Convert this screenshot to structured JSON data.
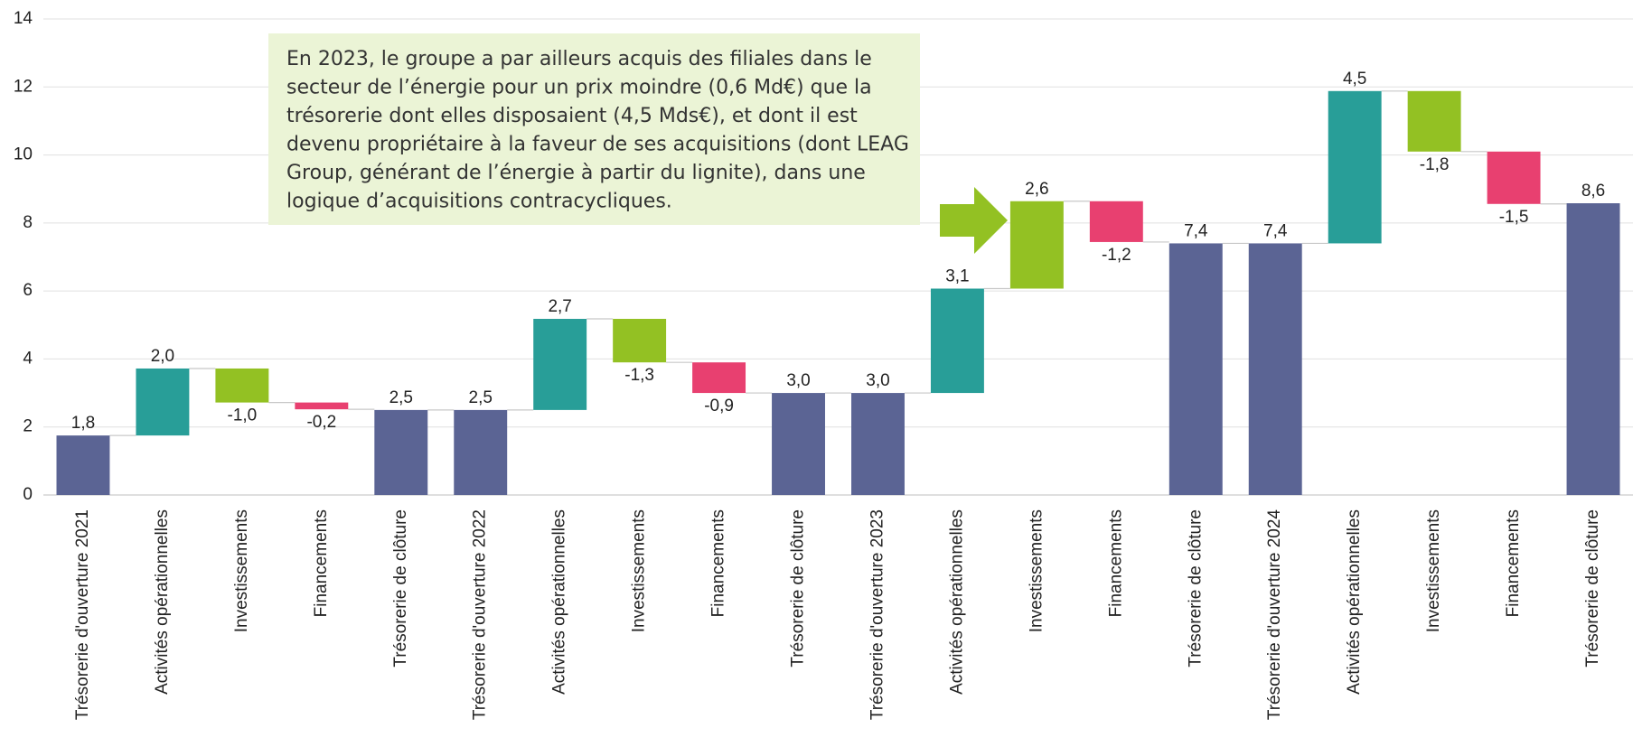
{
  "chart_data": {
    "type": "waterfall",
    "categories": [
      "Trésorerie d'ouverture 2021",
      "Activités opérationnelles",
      "Investissements",
      "Financements",
      "Trésorerie de clôture",
      "Trésorerie d'ouverture 2022",
      "Activités opérationnelles",
      "Investissements",
      "Financements",
      "Trésorerie de clôture",
      "Trésorerie d'ouverture 2023",
      "Activités opérationnelles",
      "Investissements",
      "Financements",
      "Trésorerie de clôture",
      "Trésorerie d'ouverture 2024",
      "Activités opérationnelles",
      "Investissements",
      "Financements",
      "Trésorerie de clôture"
    ],
    "values": [
      1.75,
      1.97,
      -1.0,
      -0.2,
      2.5,
      2.5,
      2.68,
      -1.28,
      -0.9,
      3.0,
      3.0,
      3.07,
      2.57,
      -1.2,
      7.4,
      7.4,
      4.48,
      -1.78,
      -1.54,
      8.58
    ],
    "value_labels": [
      "1,8",
      "2,0",
      "-1,0",
      "-0,2",
      "2,5",
      "2,5",
      "2,7",
      "-1,3",
      "-0,9",
      "3,0",
      "3,0",
      "3,1",
      "2,6",
      "-1,2",
      "7,4",
      "7,4",
      "4,5",
      "-1,8",
      "-1,5",
      "8,6"
    ],
    "measure": [
      "absolute",
      "relative",
      "relative",
      "relative",
      "absolute",
      "absolute",
      "relative",
      "relative",
      "relative",
      "absolute",
      "absolute",
      "relative",
      "relative",
      "relative",
      "absolute",
      "absolute",
      "relative",
      "relative",
      "relative",
      "absolute"
    ],
    "colors": [
      "#5b6494",
      "#289e98",
      "#93c123",
      "#e84070",
      "#5b6494",
      "#5b6494",
      "#289e98",
      "#93c123",
      "#e84070",
      "#5b6494",
      "#5b6494",
      "#289e98",
      "#93c123",
      "#e84070",
      "#5b6494",
      "#5b6494",
      "#289e98",
      "#93c123",
      "#e84070",
      "#5b6494"
    ],
    "ylim": [
      0,
      14
    ],
    "yticks": [
      0,
      2,
      4,
      6,
      8,
      10,
      12,
      14
    ],
    "grid": true,
    "annotation": [
      "En 2023, le groupe a par ailleurs acquis des filiales dans le",
      "secteur de l’énergie pour un prix moindre (0,6 Md€) que la",
      "trésorerie dont elles disposaient (4,5 Mds€), et dont il est",
      "devenu propriétaire à la faveur de ses acquisitions (dont LEAG",
      "Group, générant de l’énergie à partir du lignite), dans une",
      "logique d’acquisitions contracycliques."
    ]
  }
}
